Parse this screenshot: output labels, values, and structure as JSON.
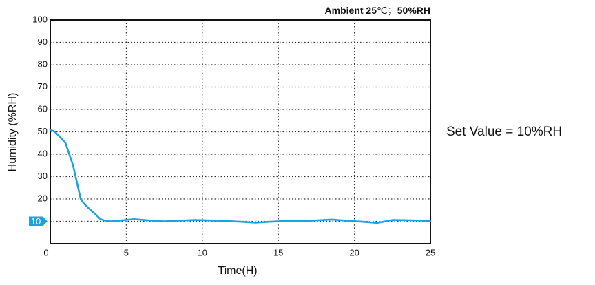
{
  "chart_data": {
    "type": "line",
    "title": "",
    "xlabel": "Time(H)",
    "ylabel": "Humidity (%RH)",
    "xlim": [
      0,
      25
    ],
    "ylim": [
      0,
      100
    ],
    "xticks": [
      0,
      5,
      10,
      15,
      20,
      25
    ],
    "yticks": [
      10,
      20,
      30,
      40,
      50,
      60,
      70,
      80,
      90,
      100
    ],
    "grid": "dotted",
    "ambient": {
      "prefix": "Ambient 25",
      "unit": "℃",
      "separator": "；",
      "rh": "50%RH"
    },
    "annotation": "Set Value = 10%RH",
    "marker_label": "10",
    "colors": {
      "series": "#1aa3e0",
      "marker": "#1aa3e0",
      "grid": "#333333"
    },
    "series": [
      {
        "x": [
          0,
          0.3,
          0.6,
          1.0,
          1.5,
          2.0,
          2.2,
          2.5,
          3.0,
          3.3,
          3.6,
          4.0,
          4.5,
          5.5,
          6.5,
          7.5,
          8.5,
          9.5,
          10.5,
          11.5,
          12.5,
          13.5,
          14.5,
          15.5,
          16.5,
          17.5,
          18.5,
          19.5,
          20.5,
          21.5,
          22.5,
          23.5,
          24.5,
          25
        ],
        "y": [
          51,
          50,
          48,
          45,
          35,
          20,
          18,
          16,
          13,
          11,
          10.3,
          10,
          10.3,
          11,
          10.4,
          10,
          10.3,
          10.6,
          10.4,
          10.2,
          9.8,
          9.4,
          9.8,
          10.2,
          10.1,
          10.4,
          10.8,
          10.3,
          9.8,
          9.3,
          10.6,
          10.5,
          10.3,
          10
        ]
      }
    ]
  }
}
